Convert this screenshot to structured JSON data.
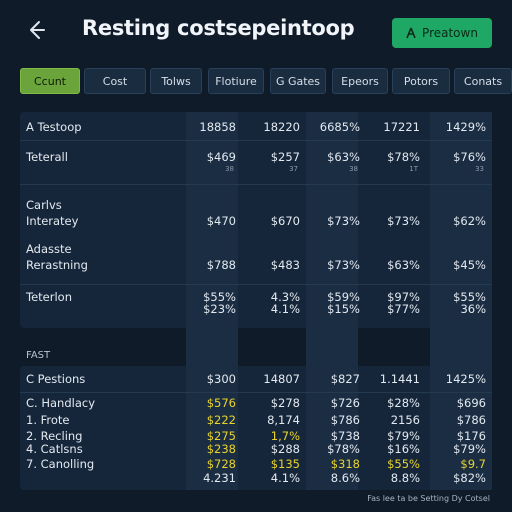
{
  "header": {
    "title": "Resting costsepeintoop",
    "action_label": "Preatown",
    "action_icon": "user-icon"
  },
  "tabs": [
    "Ccunt",
    "Cost",
    "Tolws",
    "Flotiure",
    "G Gates",
    "Epeors",
    "Potors",
    "Conats"
  ],
  "rows": [
    {
      "label": "A Testoop",
      "values": [
        "18858",
        "18220",
        "6685%",
        "17221",
        "1429%"
      ]
    },
    {
      "label": "Teterall",
      "values": [
        "$469",
        "$257",
        "$63%",
        "$78%",
        "$76%"
      ],
      "subs": [
        "38",
        "37",
        "38",
        "1T",
        "33"
      ]
    },
    {
      "label": "Carlvs",
      "values": []
    },
    {
      "label": "Interatey",
      "values": [
        "$470",
        "$670",
        "$73%",
        "$73%",
        "$62%"
      ]
    },
    {
      "label": "Adasste",
      "values": []
    },
    {
      "label": "Rerastning",
      "values": [
        "$788",
        "$483",
        "$73%",
        "$63%",
        "$45%"
      ]
    },
    {
      "label": "Teterlon",
      "values": [
        "$55%",
        "4.3%",
        "$59%",
        "$97%",
        "$55%"
      ],
      "subs2": [
        "$23%",
        "4.1%",
        "$15%",
        "$77%",
        "36%"
      ]
    }
  ],
  "section_label": "FAST",
  "rows2": [
    {
      "label": "C Pestions",
      "values": [
        "$300",
        "14807",
        "$827",
        "1.1441",
        "1425%"
      ]
    },
    {
      "label": "C. Handlacy",
      "values": [
        "$576",
        "$278",
        "$726",
        "$28%",
        "$696"
      ],
      "yellow": [
        true,
        false,
        false,
        false,
        false
      ]
    },
    {
      "label": "1. Frote",
      "values": [
        "$222",
        "8,174",
        "$786",
        "2156",
        "$786"
      ],
      "yellow": [
        true,
        false,
        false,
        false,
        false
      ]
    },
    {
      "label": "2. Recling",
      "values": [
        "$275",
        "1,7%",
        "$738",
        "$79%",
        "$176"
      ],
      "yellow": [
        true,
        true,
        false,
        false,
        false
      ]
    },
    {
      "label": "4. Catlsns",
      "values": [
        "$238",
        "$288",
        "$78%",
        "$16%",
        "$79%"
      ],
      "yellow": [
        true,
        false,
        false,
        false,
        false
      ]
    },
    {
      "label": "7. Canolling",
      "values": [
        "$728",
        "$135",
        "$318",
        "$55%",
        "$9.7"
      ],
      "yellow": [
        true,
        true,
        true,
        true,
        true
      ]
    },
    {
      "label": "",
      "values": [
        "4.231",
        "4.1%",
        "8.6%",
        "8.8%",
        "$82%"
      ],
      "yellow": [
        false,
        false,
        false,
        false,
        false
      ]
    }
  ],
  "footer": "Fas lee ta be Setting Dy Cotsel"
}
